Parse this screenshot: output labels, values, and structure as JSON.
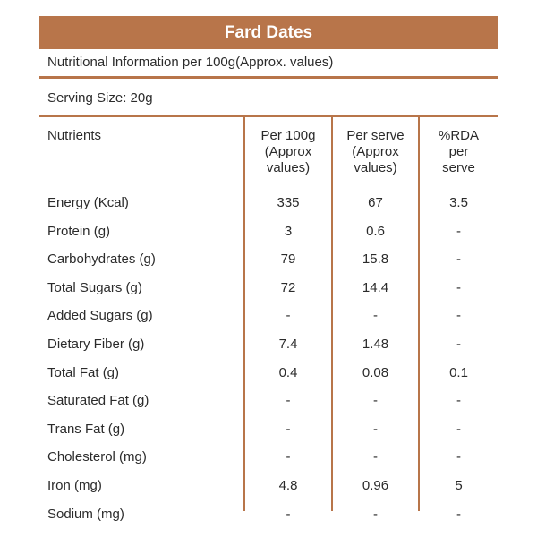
{
  "title": "Fard Dates",
  "info": "Nutritional Information per 100g(Approx. values)",
  "serving": "Serving Size:  20g",
  "headers": {
    "nutrients": "Nutrients",
    "per100": [
      "Per 100g",
      "(Approx",
      "values)"
    ],
    "perServe": [
      "Per serve",
      "(Approx",
      "values)"
    ],
    "rda": [
      "%RDA",
      "per",
      "serve"
    ]
  },
  "rows": [
    {
      "name": "Energy (Kcal)",
      "per100": "335",
      "perServe": "67",
      "rda": "3.5"
    },
    {
      "name": "Protein (g)",
      "per100": "3",
      "perServe": "0.6",
      "rda": "-"
    },
    {
      "name": "Carbohydrates (g)",
      "per100": "79",
      "perServe": "15.8",
      "rda": "-"
    },
    {
      "name": "Total Sugars (g)",
      "per100": "72",
      "perServe": "14.4",
      "rda": "-"
    },
    {
      "name": "Added Sugars (g)",
      "per100": "-",
      "perServe": "-",
      "rda": "-"
    },
    {
      "name": "Dietary Fiber (g)",
      "per100": "7.4",
      "perServe": "1.48",
      "rda": "-"
    },
    {
      "name": "Total Fat (g)",
      "per100": "0.4",
      "perServe": "0.08",
      "rda": "0.1"
    },
    {
      "name": "Saturated Fat (g)",
      "per100": "-",
      "perServe": "-",
      "rda": "-"
    },
    {
      "name": "Trans Fat (g)",
      "per100": "-",
      "perServe": "-",
      "rda": "-"
    },
    {
      "name": "Cholesterol (mg)",
      "per100": "-",
      "perServe": "-",
      "rda": "-"
    },
    {
      "name": "Iron (mg)",
      "per100": "4.8",
      "perServe": "0.96",
      "rda": "5"
    },
    {
      "name": "Sodium (mg)",
      "per100": "-",
      "perServe": "-",
      "rda": "-"
    }
  ],
  "colors": {
    "accent": "#b8754a",
    "text": "#2b2b2b"
  }
}
